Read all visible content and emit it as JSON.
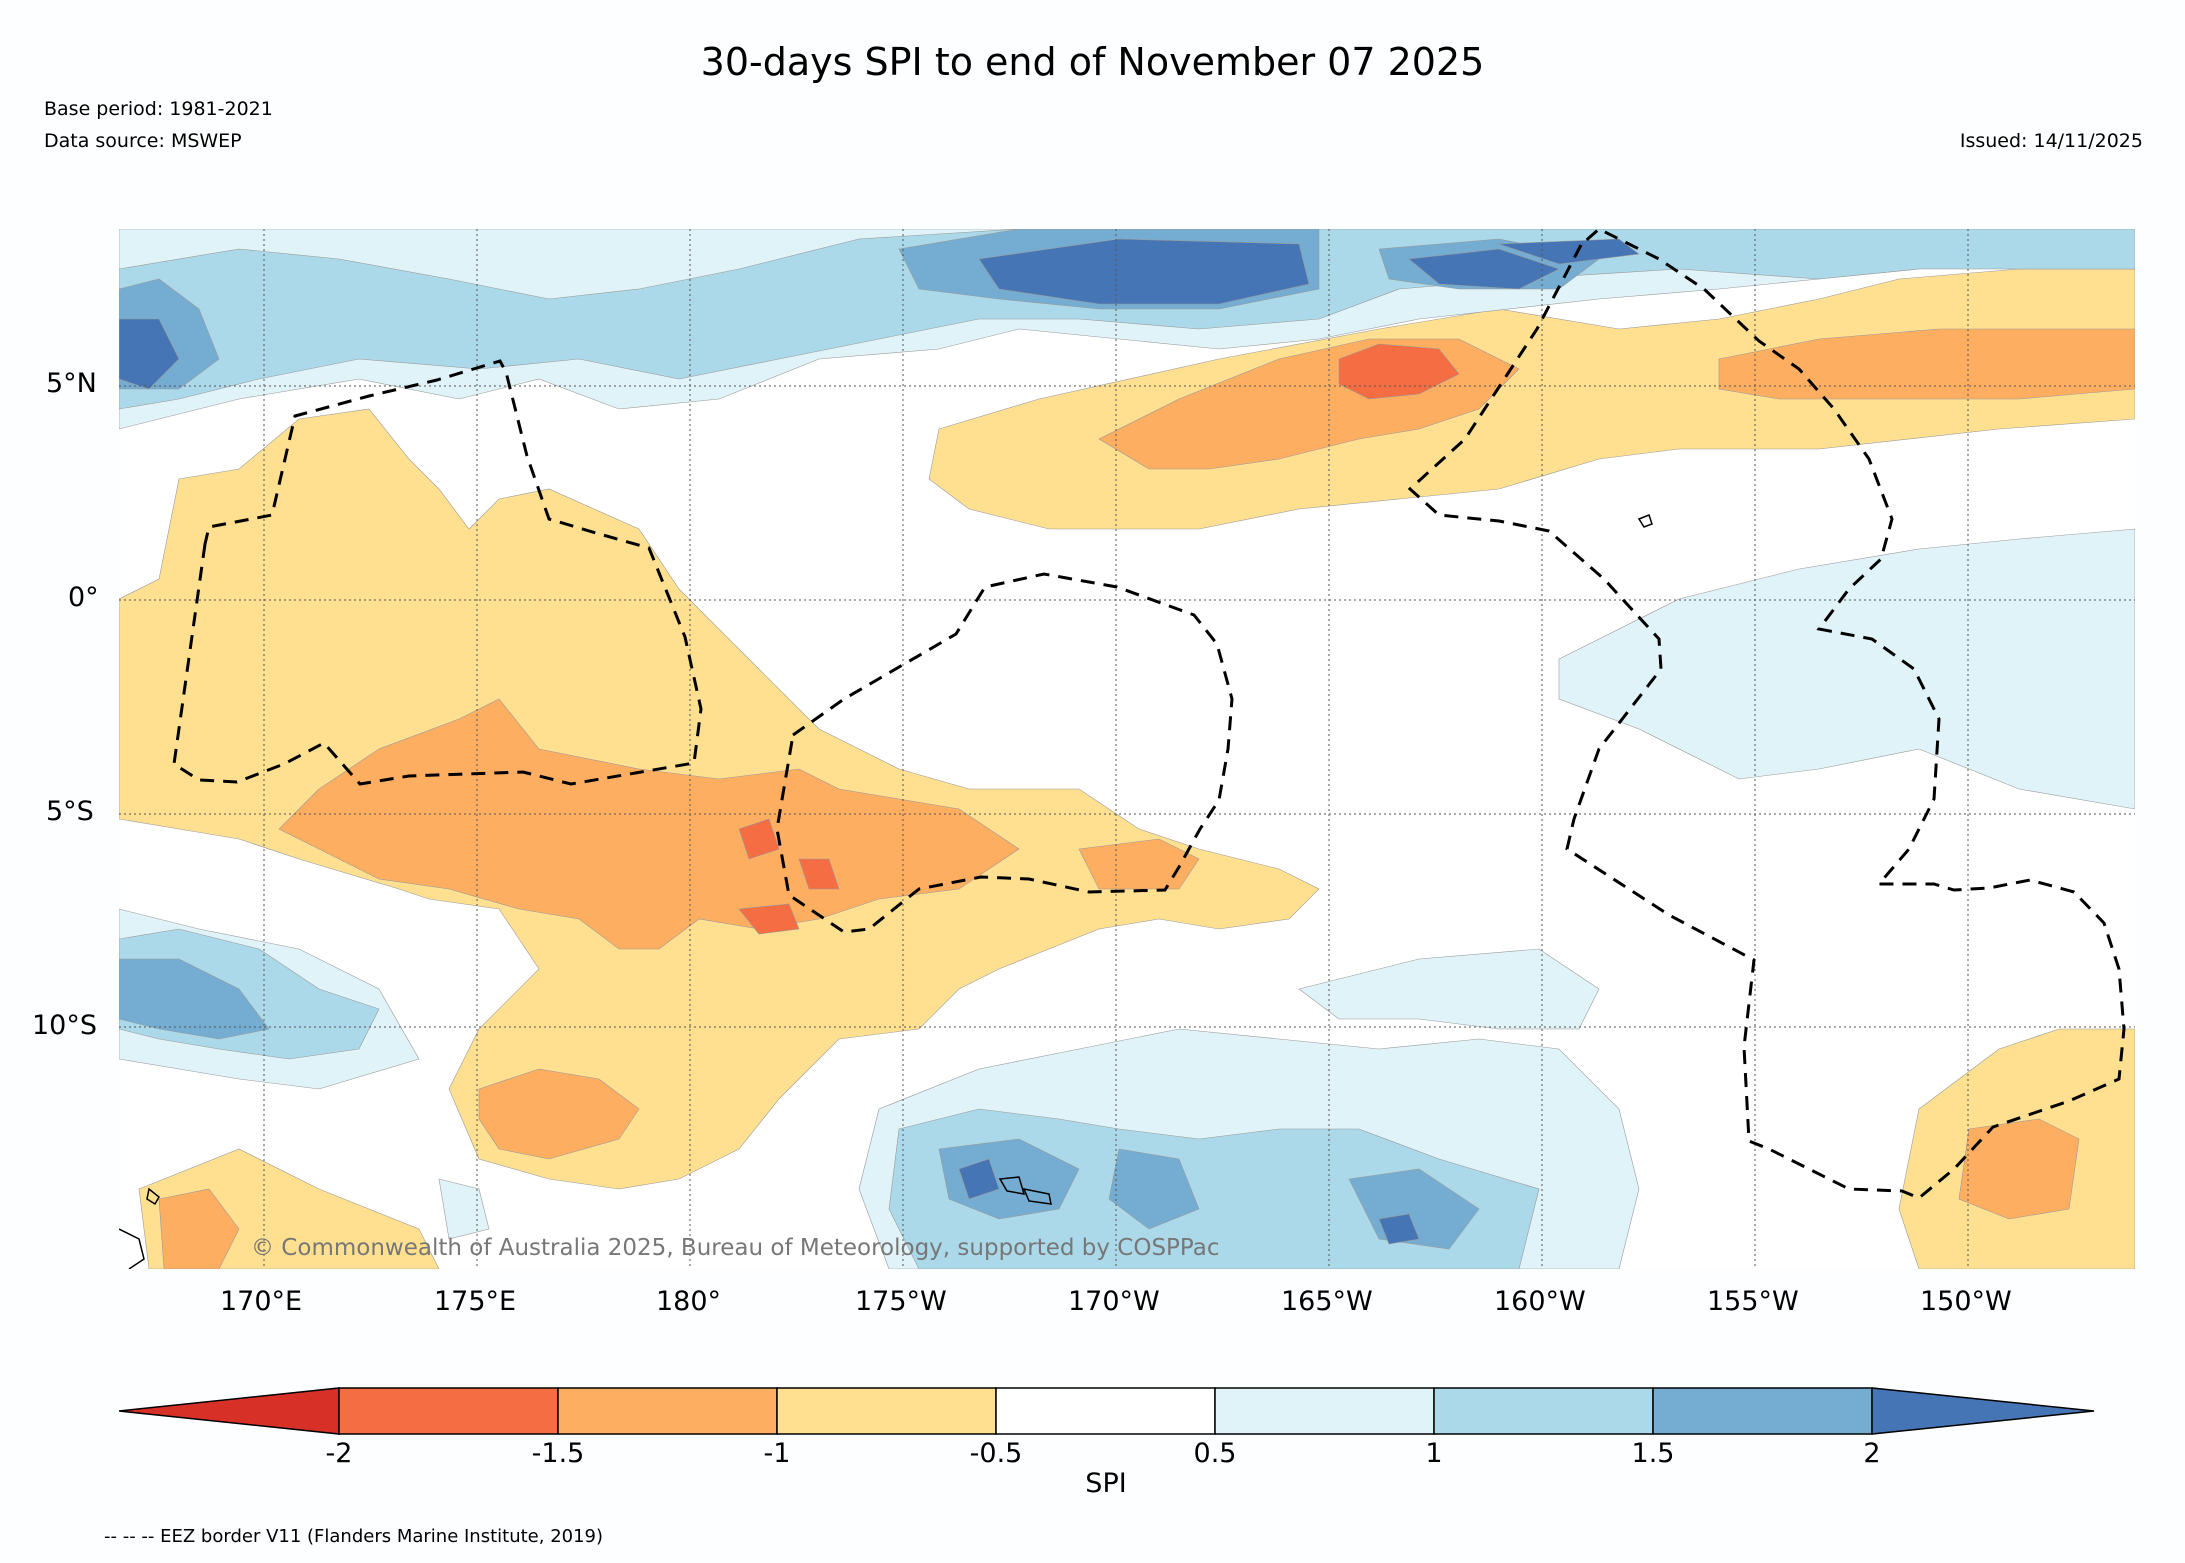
{
  "header": {
    "title": "30-days SPI to end of November 07 2025",
    "base_period": "Base period: 1981-2021",
    "data_source": "Data source: MSWEP",
    "issued": "Issued: 14/11/2025"
  },
  "map": {
    "copyright": "© Commonwealth of Australia 2025, Bureau of Meteorology, supported by COSPPac",
    "lat_labels": [
      "5°N",
      "0°",
      "5°S",
      "10°S"
    ],
    "lon_labels": [
      "170°E",
      "175°E",
      "180°",
      "175°W",
      "170°W",
      "165°W",
      "160°W",
      "155°W",
      "150°W"
    ],
    "colors": {
      "lt_m2": "#d73027",
      "m2_m15": "#f46d43",
      "m15_m1": "#fdae61",
      "m1_m05": "#fee090",
      "neutral": "#ffffff",
      "p05_p1": "#e0f3f8",
      "p1_p15": "#abd9e9",
      "p15_p2": "#74add1",
      "gt_p2": "#4575b4"
    }
  },
  "colorbar": {
    "label": "SPI",
    "ticks": [
      "-2",
      "-1.5",
      "-1",
      "-0.5",
      "0.5",
      "1",
      "1.5",
      "2"
    ]
  },
  "footer": {
    "legend": "-- -- -- EEZ border V11 (Flanders Marine Institute, 2019)"
  }
}
